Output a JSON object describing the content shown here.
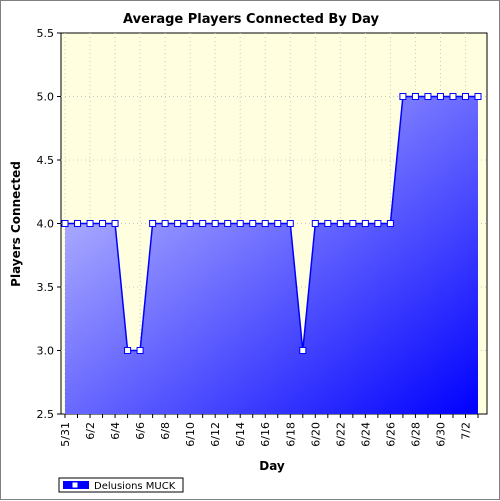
{
  "chart_data": {
    "type": "area",
    "title": "Average Players Connected By Day",
    "xlabel": "Day",
    "ylabel": "Players Connected",
    "ylim": [
      2.5,
      5.5
    ],
    "yticks": [
      "2.5",
      "3.0",
      "3.5",
      "4.0",
      "4.5",
      "5.0",
      "5.5"
    ],
    "x": [
      "5/31",
      "6/1",
      "6/2",
      "6/3",
      "6/4",
      "6/5",
      "6/6",
      "6/7",
      "6/8",
      "6/9",
      "6/10",
      "6/11",
      "6/12",
      "6/13",
      "6/14",
      "6/15",
      "6/16",
      "6/17",
      "6/18",
      "6/19",
      "6/20",
      "6/21",
      "6/22",
      "6/23",
      "6/24",
      "6/25",
      "6/26",
      "6/27",
      "6/28",
      "6/29",
      "6/30",
      "7/1",
      "7/2",
      "7/3"
    ],
    "xtick_labels": [
      "5/31",
      "6/2",
      "6/4",
      "6/6",
      "6/8",
      "6/10",
      "6/12",
      "6/14",
      "6/16",
      "6/18",
      "6/20",
      "6/22",
      "6/24",
      "6/26",
      "6/28",
      "6/30",
      "7/2"
    ],
    "series": [
      {
        "name": "Delusions MUCK",
        "values": [
          4,
          4,
          4,
          4,
          4,
          3,
          3,
          4,
          4,
          4,
          4,
          4,
          4,
          4,
          4,
          4,
          4,
          4,
          4,
          3,
          4,
          4,
          4,
          4,
          4,
          4,
          4,
          5,
          5,
          5,
          5,
          5,
          5,
          5
        ]
      }
    ],
    "grid": true,
    "legend": "bottom-left",
    "colors": {
      "plot_bg": "#ffffe0",
      "fill_light": "#d2d2ff",
      "fill_dark": "#0000ff",
      "line": "#0000ff",
      "marker_fill": "#ffffff",
      "grid": "#c8c8c8"
    }
  }
}
